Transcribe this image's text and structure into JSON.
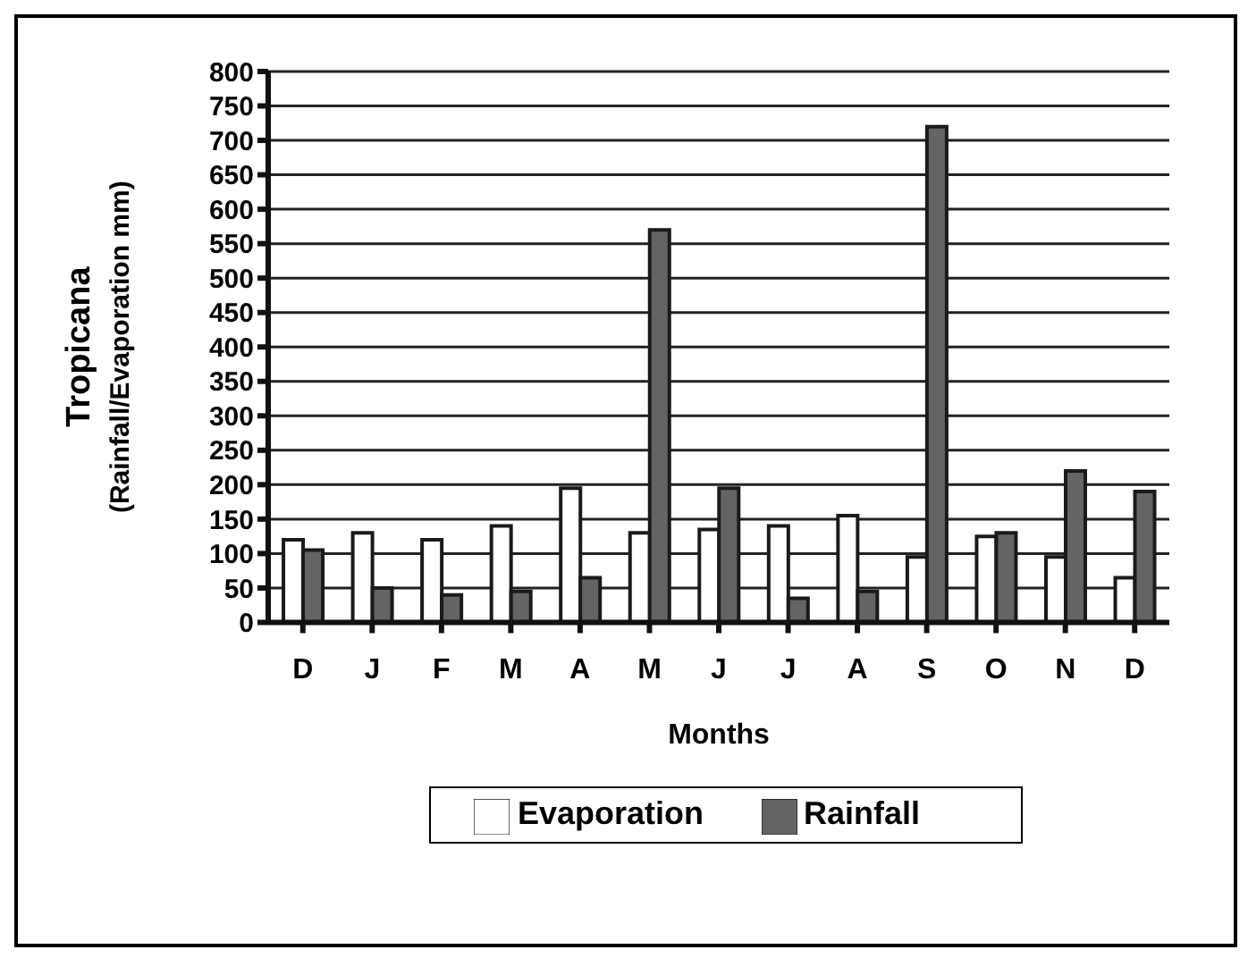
{
  "chart_data": {
    "type": "bar",
    "xlabel": "Months",
    "ylabel": "Tropicana\n(Rainfall/Evaporation mm)",
    "categories": [
      "D",
      "J",
      "F",
      "M",
      "A",
      "M",
      "J",
      "J",
      "A",
      "S",
      "O",
      "N",
      "D"
    ],
    "series": [
      {
        "name": "Evaporation",
        "color": "#ffffff",
        "values": [
          120,
          130,
          120,
          140,
          195,
          130,
          135,
          140,
          155,
          95,
          125,
          95,
          65
        ]
      },
      {
        "name": "Rainfall",
        "color": "#646464",
        "values": [
          105,
          50,
          40,
          45,
          65,
          570,
          195,
          35,
          45,
          720,
          130,
          220,
          190
        ]
      }
    ],
    "ylim": [
      0,
      800
    ],
    "yticks": [
      0,
      50,
      100,
      150,
      200,
      250,
      300,
      350,
      400,
      450,
      500,
      550,
      600,
      650,
      700,
      750,
      800
    ],
    "grid": "y",
    "legend": "bottom"
  }
}
